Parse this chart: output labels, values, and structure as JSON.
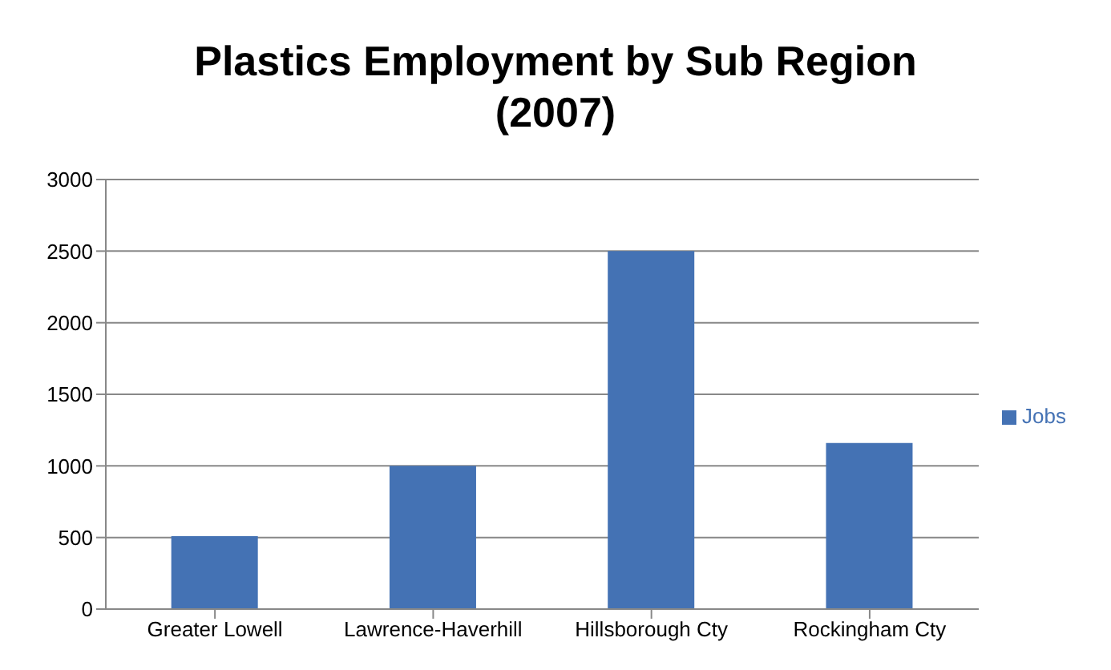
{
  "chart_data": {
    "type": "bar",
    "title": "Plastics Employment by Sub Region\n(2007)",
    "categories": [
      "Greater Lowell",
      "Lawrence-Haverhill",
      "Hillsborough Cty",
      "Rockingham Cty"
    ],
    "series": [
      {
        "name": "Jobs",
        "color": "#4472b4",
        "values": [
          510,
          1000,
          2500,
          1160
        ]
      }
    ],
    "ylim": [
      0,
      3000
    ],
    "yticks": [
      0,
      500,
      1000,
      1500,
      2000,
      2500,
      3000
    ],
    "grid": "y",
    "legend": "right"
  }
}
